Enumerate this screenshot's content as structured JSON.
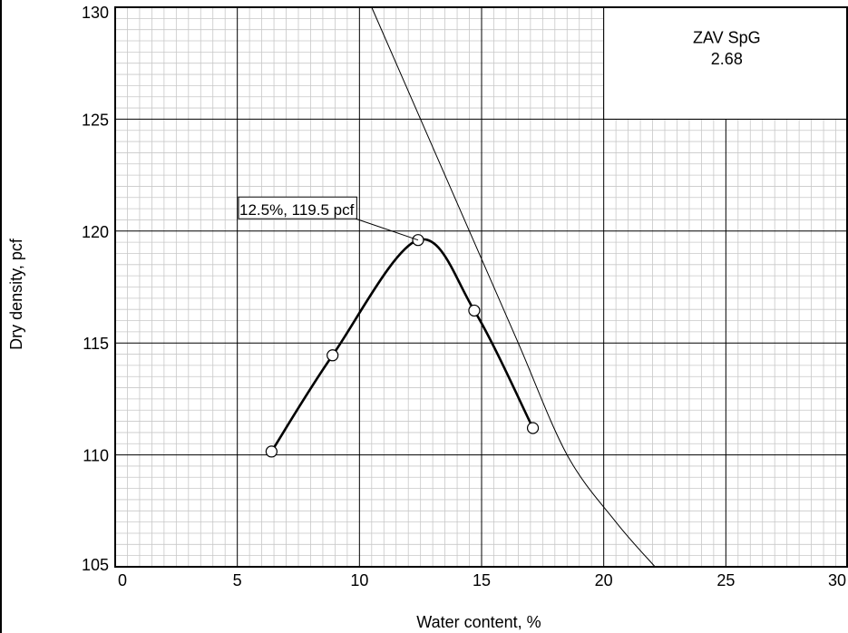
{
  "chart_data": {
    "type": "scatter",
    "xlabel": "Water content, %",
    "ylabel": "Dry density, pcf",
    "xlim": [
      0,
      30
    ],
    "ylim": [
      105,
      130
    ],
    "x_ticks": [
      "0",
      "5",
      "10",
      "15",
      "20",
      "25",
      "30"
    ],
    "y_ticks": [
      "105",
      "110",
      "115",
      "120",
      "125",
      "130"
    ],
    "grid": true,
    "series": [
      {
        "kind": "compaction-points",
        "points": [
          {
            "x": 6.4,
            "y": 110.15
          },
          {
            "x": 8.9,
            "y": 114.45
          },
          {
            "x": 12.4,
            "y": 119.6
          },
          {
            "x": 14.7,
            "y": 116.45
          },
          {
            "x": 17.1,
            "y": 111.2
          }
        ]
      },
      {
        "kind": "zav-line",
        "points": [
          {
            "x": 10.5,
            "y": 130
          },
          {
            "x": 12.5,
            "y": 125
          },
          {
            "x": 14.5,
            "y": 120
          },
          {
            "x": 16.5,
            "y": 115
          },
          {
            "x": 18.5,
            "y": 110
          },
          {
            "x": 20.5,
            "y": 107
          },
          {
            "x": 22.1,
            "y": 105
          }
        ]
      }
    ],
    "annotations": {
      "peak_label": "12.5%, 119.5 pcf",
      "peak_point": {
        "x": 12.4,
        "y": 119.6
      },
      "zav_title": "ZAV SpG",
      "zav_value": "2.68"
    }
  }
}
